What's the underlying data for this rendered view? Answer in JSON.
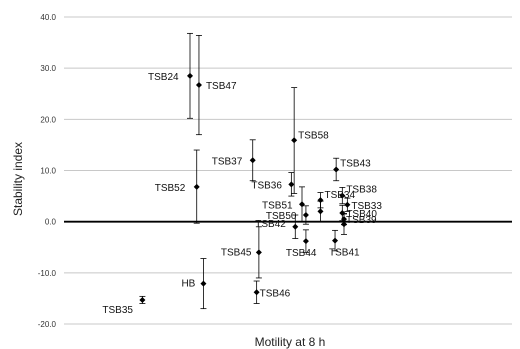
{
  "chart_data": {
    "type": "scatter",
    "xlabel": "Motility at 8 h",
    "ylabel": "Stability index",
    "ylim": [
      -20,
      40
    ],
    "yticks": [
      "-20.0",
      "-10.0",
      "0.0",
      "10.0",
      "20.0",
      "30.0",
      "40.0"
    ],
    "grid": true,
    "legend": "none",
    "error_bars": true,
    "colors": {
      "point": "#000000",
      "grid": "#c8c8c8",
      "axis": "#000000"
    },
    "points": [
      {
        "label": "TSB24",
        "x": 0.225,
        "y": 28.5,
        "ylow": 20.2,
        "yhigh": 36.8
      },
      {
        "label": "TSB47",
        "x": 0.241,
        "y": 26.7,
        "ylow": 17.0,
        "yhigh": 36.4
      },
      {
        "label": "TSB58",
        "x": 0.411,
        "y": 15.9,
        "ylow": 5.5,
        "yhigh": 26.2
      },
      {
        "label": "TSB37",
        "x": 0.337,
        "y": 12.0,
        "ylow": 8.0,
        "yhigh": 16.0
      },
      {
        "label": "TSB52",
        "x": 0.237,
        "y": 6.8,
        "ylow": -0.3,
        "yhigh": 14.0
      },
      {
        "label": "TSB43",
        "x": 0.486,
        "y": 10.2,
        "ylow": 8.0,
        "yhigh": 12.4
      },
      {
        "label": "TSB36",
        "x": 0.406,
        "y": 7.3,
        "ylow": 5.0,
        "yhigh": 9.6
      },
      {
        "label": "TSB38",
        "x": 0.497,
        "y": 5.1,
        "ylow": 3.5,
        "yhigh": 6.7
      },
      {
        "label": "TSB34",
        "x": 0.458,
        "y": 4.2,
        "ylow": 2.7,
        "yhigh": 5.7
      },
      {
        "label": "TSB51",
        "x": 0.425,
        "y": 3.4,
        "ylow": 0.0,
        "yhigh": 6.8
      },
      {
        "label": "TSB33",
        "x": 0.506,
        "y": 3.3,
        "ylow": 2.0,
        "yhigh": 4.6
      },
      {
        "label": "TSB40",
        "x": 0.497,
        "y": 1.7,
        "ylow": 0.2,
        "yhigh": 3.2
      },
      {
        "label": "TSB39",
        "x": 0.5,
        "y": 0.5,
        "ylow": -0.6,
        "yhigh": 1.6
      },
      {
        "label": "TSB50",
        "x": 0.432,
        "y": 1.3,
        "ylow": -0.5,
        "yhigh": 3.1
      },
      {
        "label": "TSB42",
        "x": 0.413,
        "y": -1.0,
        "ylow": -3.3,
        "yhigh": 1.3
      },
      {
        "label": "TSB44",
        "x": 0.432,
        "y": -3.8,
        "ylow": -6.0,
        "yhigh": -1.6
      },
      {
        "label": "TSB41",
        "x": 0.484,
        "y": -3.7,
        "ylow": -5.7,
        "yhigh": -1.7
      },
      {
        "label": "TSB45",
        "x": 0.348,
        "y": -6.0,
        "ylow": -11.0,
        "yhigh": -1.0
      },
      {
        "label": "TSB46",
        "x": 0.344,
        "y": -13.8,
        "ylow": -16.0,
        "yhigh": -11.6
      },
      {
        "label": "HB",
        "x": 0.249,
        "y": -12.1,
        "ylow": -17.0,
        "yhigh": -7.2
      },
      {
        "label": "TSB35",
        "x": 0.14,
        "y": -15.3,
        "ylow": -16.0,
        "yhigh": -14.6
      },
      {
        "label": "",
        "x": 0.458,
        "y": 2.0,
        "ylow": 0.0,
        "yhigh": 4.0
      },
      {
        "label": "",
        "x": 0.5,
        "y": -0.5,
        "ylow": -2.5,
        "yhigh": 1.5
      }
    ]
  }
}
